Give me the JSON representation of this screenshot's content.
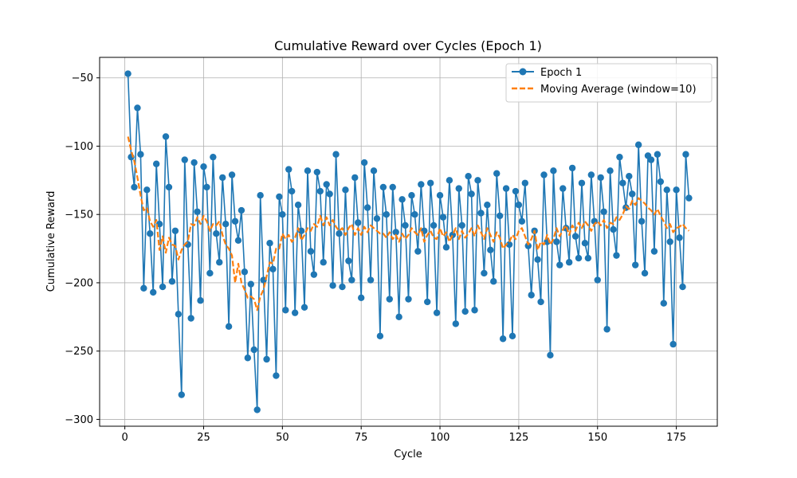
{
  "chart_data": {
    "type": "line",
    "title": "Cumulative Reward over Cycles (Epoch 1)",
    "xlabel": "Cycle",
    "ylabel": "Cumulative Reward",
    "xlim": [
      -8,
      188
    ],
    "ylim": [
      -305,
      -35
    ],
    "xticks": [
      0,
      25,
      50,
      75,
      100,
      125,
      150,
      175
    ],
    "yticks": [
      -300,
      -250,
      -200,
      -150,
      -100,
      -50
    ],
    "ytick_labels": [
      "−300",
      "−250",
      "−200",
      "−150",
      "−100",
      "−50"
    ],
    "grid": true,
    "legend_position": "top-right",
    "series": [
      {
        "name": "Epoch 1",
        "color": "#1f77b4",
        "style": "solid-line-with-circle-markers",
        "x_start": 1,
        "x_step": 1,
        "values": [
          -47,
          -108,
          -130,
          -72,
          -106,
          -204,
          -132,
          -164,
          -207,
          -113,
          -157,
          -203,
          -93,
          -130,
          -199,
          -162,
          -223,
          -282,
          -110,
          -172,
          -226,
          -112,
          -148,
          -213,
          -115,
          -130,
          -193,
          -108,
          -164,
          -185,
          -123,
          -157,
          -232,
          -121,
          -155,
          -169,
          -147,
          -192,
          -255,
          -201,
          -249,
          -293,
          -136,
          -198,
          -256,
          -171,
          -190,
          -268,
          -137,
          -150,
          -220,
          -117,
          -133,
          -222,
          -143,
          -162,
          -218,
          -118,
          -177,
          -194,
          -119,
          -133,
          -185,
          -128,
          -135,
          -202,
          -106,
          -164,
          -203,
          -132,
          -184,
          -198,
          -123,
          -156,
          -211,
          -112,
          -145,
          -198,
          -118,
          -153,
          -239,
          -130,
          -150,
          -212,
          -130,
          -163,
          -225,
          -139,
          -158,
          -212,
          -136,
          -150,
          -177,
          -128,
          -162,
          -214,
          -127,
          -158,
          -222,
          -136,
          -152,
          -174,
          -125,
          -165,
          -230,
          -131,
          -158,
          -221,
          -122,
          -135,
          -220,
          -125,
          -149,
          -193,
          -143,
          -176,
          -199,
          -120,
          -151,
          -241,
          -131,
          -172,
          -239,
          -133,
          -143,
          -155,
          -127,
          -173,
          -209,
          -162,
          -183,
          -214,
          -121,
          -170,
          -253,
          -118,
          -170,
          -187,
          -131,
          -160,
          -185,
          -116,
          -166,
          -182,
          -127,
          -171,
          -182,
          -121,
          -155,
          -198,
          -123,
          -148,
          -234,
          -118,
          -161,
          -180,
          -108,
          -127,
          -145,
          -122,
          -135,
          -187,
          -99,
          -155,
          -193,
          -107,
          -110,
          -177,
          -106,
          -126,
          -215,
          -132,
          -170,
          -245,
          -132,
          -167,
          -203,
          -106,
          -138
        ]
      },
      {
        "name": "Moving Average (window=10)",
        "color": "#ff7f0e",
        "style": "dashed",
        "x_start": 1,
        "x_step": 1,
        "values": [
          -93,
          -103,
          -111,
          -123,
          -136,
          -147,
          -145,
          -155,
          -159,
          -154,
          -176,
          -166,
          -178,
          -167,
          -172,
          -173,
          -183,
          -176,
          -172,
          -170,
          -157,
          -158,
          -152,
          -157,
          -151,
          -155,
          -162,
          -157,
          -158,
          -155,
          -165,
          -172,
          -175,
          -180,
          -200,
          -186,
          -200,
          -205,
          -211,
          -210,
          -212,
          -220,
          -210,
          -205,
          -195,
          -185,
          -186,
          -175,
          -175,
          -164,
          -168,
          -165,
          -170,
          -167,
          -160,
          -169,
          -165,
          -160,
          -162,
          -157,
          -159,
          -151,
          -158,
          -152,
          -158,
          -154,
          -159,
          -162,
          -160,
          -165,
          -160,
          -157,
          -165,
          -160,
          -165,
          -159,
          -163,
          -158,
          -160,
          -162,
          -164,
          -164,
          -167,
          -163,
          -168,
          -165,
          -170,
          -164,
          -168,
          -165,
          -160,
          -163,
          -165,
          -160,
          -170,
          -165,
          -162,
          -167,
          -168,
          -160,
          -166,
          -163,
          -170,
          -165,
          -160,
          -168,
          -162,
          -167,
          -164,
          -160,
          -166,
          -158,
          -163,
          -168,
          -160,
          -165,
          -170,
          -163,
          -167,
          -175,
          -172,
          -170,
          -165,
          -168,
          -162,
          -160,
          -166,
          -172,
          -168,
          -162,
          -176,
          -170,
          -172,
          -165,
          -172,
          -168,
          -160,
          -166,
          -161,
          -158,
          -165,
          -158,
          -162,
          -156,
          -160,
          -155,
          -158,
          -162,
          -157,
          -155,
          -158,
          -154,
          -160,
          -156,
          -157,
          -152,
          -154,
          -150,
          -144,
          -146,
          -140,
          -143,
          -138,
          -140,
          -142,
          -145,
          -147,
          -150,
          -146,
          -151,
          -155,
          -160,
          -157,
          -163,
          -160,
          -159,
          -157,
          -160,
          -162
        ]
      }
    ]
  }
}
